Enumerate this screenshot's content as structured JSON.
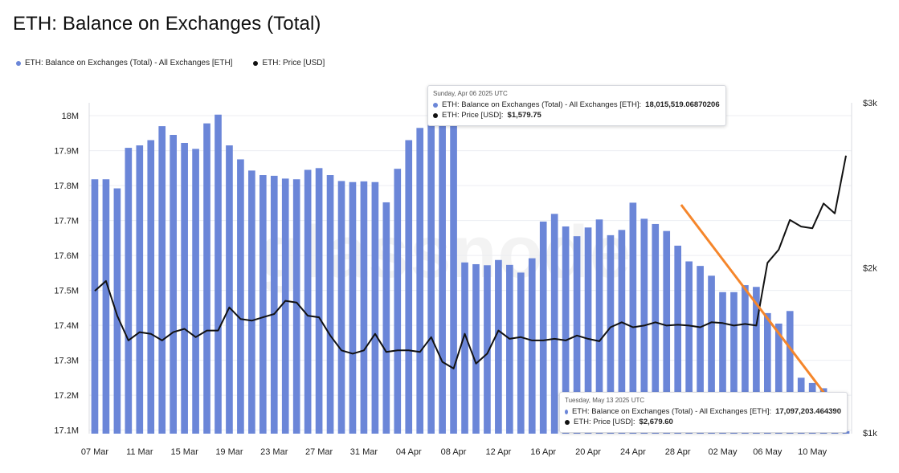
{
  "title": "ETH: Balance on Exchanges (Total)",
  "watermark": "glassnode",
  "colors": {
    "balance": "#6b86d8",
    "price": "#111111",
    "arrow": "#f5862b",
    "grid": "#eceef2"
  },
  "legend": [
    {
      "label": "ETH: Balance on Exchanges (Total) - All Exchanges [ETH]",
      "color": "#6b86d8"
    },
    {
      "label": "ETH: Price [USD]",
      "color": "#111111"
    }
  ],
  "tooltips": [
    {
      "date": "Sunday, Apr 06 2025 UTC",
      "balance_label": "ETH: Balance on Exchanges (Total) - All Exchanges [ETH]:",
      "balance_value": "18,015,519.06870206",
      "price_label": "ETH: Price [USD]:",
      "price_value": "$1,579.75"
    },
    {
      "date": "Tuesday, May 13 2025 UTC",
      "balance_label": "ETH: Balance on Exchanges (Total) - All Exchanges [ETH]:",
      "balance_value": "17,097,203.464390",
      "price_label": "ETH: Price [USD]:",
      "price_value": "$2,679.60"
    }
  ],
  "chart_data": {
    "type": "bar",
    "x": [
      "07 Mar",
      "08 Mar",
      "09 Mar",
      "10 Mar",
      "11 Mar",
      "12 Mar",
      "13 Mar",
      "14 Mar",
      "15 Mar",
      "16 Mar",
      "17 Mar",
      "18 Mar",
      "19 Mar",
      "20 Mar",
      "21 Mar",
      "22 Mar",
      "23 Mar",
      "24 Mar",
      "25 Mar",
      "26 Mar",
      "27 Mar",
      "28 Mar",
      "29 Mar",
      "30 Mar",
      "31 Mar",
      "01 Apr",
      "02 Apr",
      "03 Apr",
      "04 Apr",
      "05 Apr",
      "06 Apr",
      "07 Apr",
      "08 Apr",
      "09 Apr",
      "10 Apr",
      "11 Apr",
      "12 Apr",
      "13 Apr",
      "14 Apr",
      "15 Apr",
      "16 Apr",
      "17 Apr",
      "18 Apr",
      "19 Apr",
      "20 Apr",
      "21 Apr",
      "22 Apr",
      "23 Apr",
      "24 Apr",
      "25 Apr",
      "26 Apr",
      "27 Apr",
      "28 Apr",
      "29 Apr",
      "30 Apr",
      "01 May",
      "02 May",
      "03 May",
      "04 May",
      "05 May",
      "06 May",
      "07 May",
      "08 May",
      "09 May",
      "10 May",
      "11 May",
      "12 May",
      "13 May"
    ],
    "x_tick_labels": [
      "07 Mar",
      "11 Mar",
      "15 Mar",
      "19 Mar",
      "23 Mar",
      "27 Mar",
      "31 Mar",
      "04 Apr",
      "08 Apr",
      "12 Apr",
      "16 Apr",
      "20 Apr",
      "24 Apr",
      "28 Apr",
      "02 May",
      "06 May",
      "10 May"
    ],
    "series": [
      {
        "name": "ETH: Balance on Exchanges (Total) - All Exchanges [ETH]",
        "axis": "left",
        "values": [
          17.818,
          17.818,
          17.792,
          17.908,
          17.915,
          17.93,
          17.97,
          17.945,
          17.922,
          17.905,
          17.978,
          18.003,
          17.915,
          17.875,
          17.843,
          17.83,
          17.828,
          17.82,
          17.818,
          17.845,
          17.85,
          17.83,
          17.813,
          17.81,
          17.812,
          17.81,
          17.752,
          17.848,
          17.93,
          17.965,
          18.015,
          18.01,
          17.985,
          17.58,
          17.575,
          17.572,
          17.587,
          17.573,
          17.551,
          17.592,
          17.697,
          17.719,
          17.683,
          17.655,
          17.68,
          17.703,
          17.658,
          17.673,
          17.751,
          17.705,
          17.69,
          17.67,
          17.628,
          17.583,
          17.57,
          17.542,
          17.495,
          17.495,
          17.515,
          17.51,
          17.435,
          17.405,
          17.441,
          17.25,
          17.235,
          17.22,
          17.205,
          17.097
        ]
      },
      {
        "name": "ETH: Price [USD]",
        "axis": "right",
        "values": [
          1860,
          1920,
          1710,
          1560,
          1610,
          1600,
          1560,
          1610,
          1630,
          1580,
          1620,
          1620,
          1760,
          1690,
          1680,
          1700,
          1720,
          1800,
          1790,
          1710,
          1700,
          1590,
          1500,
          1480,
          1500,
          1600,
          1490,
          1500,
          1500,
          1490,
          1580,
          1430,
          1390,
          1600,
          1420,
          1480,
          1620,
          1570,
          1580,
          1560,
          1560,
          1570,
          1560,
          1590,
          1570,
          1555,
          1640,
          1670,
          1640,
          1650,
          1670,
          1650,
          1655,
          1650,
          1640,
          1670,
          1665,
          1650,
          1660,
          1650,
          2030,
          2110,
          2290,
          2250,
          2240,
          2390,
          2330,
          2679.6
        ]
      }
    ],
    "y_left": {
      "ticks": [
        "17.1M",
        "17.2M",
        "17.3M",
        "17.4M",
        "17.5M",
        "17.6M",
        "17.7M",
        "17.8M",
        "17.9M",
        "18M"
      ],
      "range": [
        17.09,
        18.03
      ],
      "unit": "M ETH"
    },
    "y_right": {
      "ticks": [
        "$1k",
        "$2k",
        "$3k"
      ],
      "range": [
        1000,
        3000
      ],
      "unit": "USD"
    },
    "annotations": [
      {
        "type": "arrow",
        "from_date": "24 Apr",
        "from_value": 17.745,
        "to_date": "13 May",
        "to_value": 17.095
      }
    ],
    "grid": true
  }
}
